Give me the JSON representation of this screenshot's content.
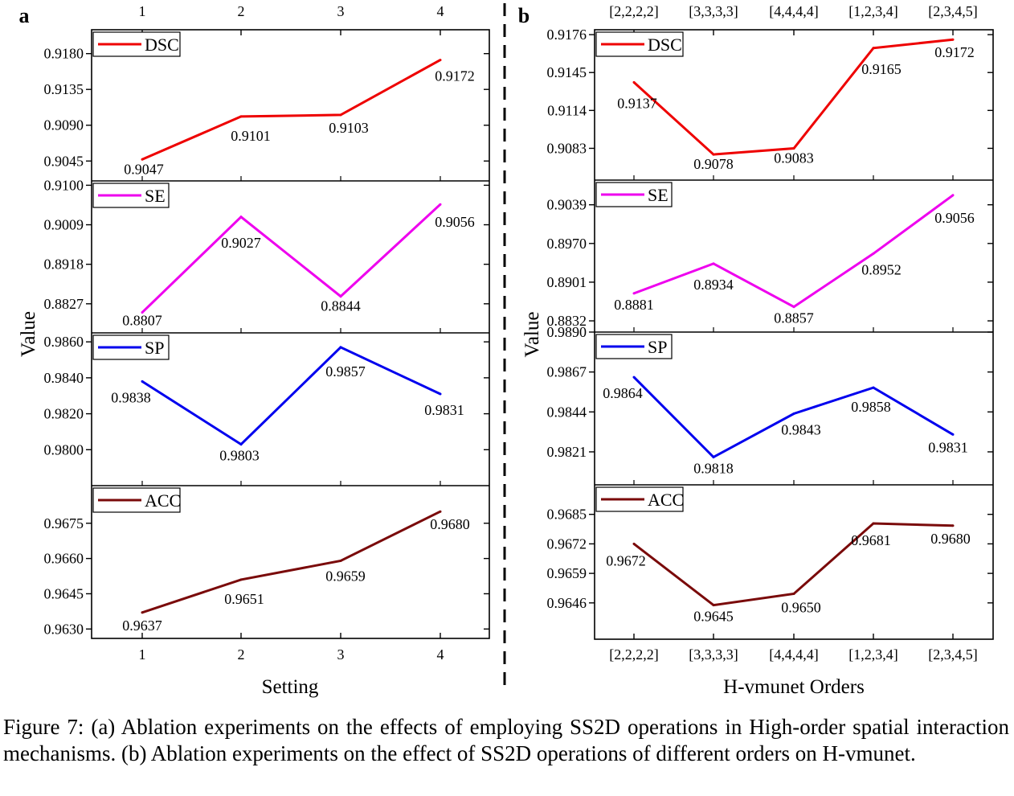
{
  "caption": "Figure 7: (a) Ablation experiments on the effects of employing SS2D operations in High-order spatial interaction mechanisms. (b) Ablation experiments on the effect of SS2D operations of different orders on H-vmunet.",
  "chart_data": [
    {
      "panel_label": "a",
      "type": "line",
      "xlabel": "Setting",
      "ylabel": "Value",
      "categories": [
        "1",
        "2",
        "3",
        "4"
      ],
      "top_tick_labels": [
        "1",
        "2",
        "3",
        "4"
      ],
      "subplots": [
        {
          "name": "DSC",
          "color": "#ee0000",
          "values": [
            0.9047,
            0.9101,
            0.9103,
            0.9172
          ],
          "ylim": [
            0.902,
            0.921
          ],
          "yticks": [
            "0.9045",
            "0.9090",
            "0.9135",
            "0.9180"
          ],
          "labels": [
            "0.9047",
            "0.9101",
            "0.9103",
            "0.9172"
          ],
          "legend": "top-left"
        },
        {
          "name": "SE",
          "color": "#ee00ee",
          "values": [
            0.8807,
            0.9027,
            0.8844,
            0.9056
          ],
          "ylim": [
            0.876,
            0.911
          ],
          "yticks": [
            "0.8827",
            "0.8918",
            "0.9009",
            "0.9100"
          ],
          "labels": [
            "0.8807",
            "0.9027",
            "0.8844",
            "0.9056"
          ],
          "legend": "top-left"
        },
        {
          "name": "SP",
          "color": "#0000ee",
          "values": [
            0.9838,
            0.9803,
            0.9857,
            0.9831
          ],
          "ylim": [
            0.978,
            0.9865
          ],
          "yticks": [
            "0.9800",
            "0.9820",
            "0.9840",
            "0.9860"
          ],
          "labels": [
            "0.9838",
            "0.9803",
            "0.9857",
            "0.9831"
          ],
          "legend": "top-left"
        },
        {
          "name": "ACC",
          "color": "#7a0a0a",
          "values": [
            0.9637,
            0.9651,
            0.9659,
            0.968
          ],
          "ylim": [
            0.9626,
            0.9691
          ],
          "yticks": [
            "0.9630",
            "0.9645",
            "0.9660",
            "0.9675"
          ],
          "labels": [
            "0.9637",
            "0.9651",
            "0.9659",
            "0.9680"
          ],
          "legend": "top-left"
        }
      ]
    },
    {
      "panel_label": "b",
      "type": "line",
      "xlabel": "H-vmunet Orders",
      "ylabel": "Value",
      "categories": [
        "[2,2,2,2]",
        "[3,3,3,3]",
        "[4,4,4,4]",
        "[1,2,3,4]",
        "[2,3,4,5]"
      ],
      "top_tick_labels": [
        "[2,2,2,2]",
        "[3,3,3,3]",
        "[4,4,4,4]",
        "[1,2,3,4]",
        "[2,3,4,5]"
      ],
      "subplots": [
        {
          "name": "DSC",
          "color": "#ee0000",
          "values": [
            0.9137,
            0.9078,
            0.9083,
            0.9165,
            0.9172
          ],
          "ylim": [
            0.9057,
            0.918
          ],
          "yticks": [
            "0.9083",
            "0.9114",
            "0.9145",
            "0.9176"
          ],
          "labels": [
            "0.9137",
            "0.9078",
            "0.9083",
            "0.9165",
            "0.9172"
          ],
          "legend": "top-left"
        },
        {
          "name": "SE",
          "color": "#ee00ee",
          "values": [
            0.8881,
            0.8934,
            0.8857,
            0.8952,
            0.9056
          ],
          "ylim": [
            0.8812,
            0.9083
          ],
          "yticks": [
            "0.8832",
            "0.8901",
            "0.8970",
            "0.9039"
          ],
          "labels": [
            "0.8881",
            "0.8934",
            "0.8857",
            "0.8952",
            "0.9056"
          ],
          "legend": "top-left"
        },
        {
          "name": "SP",
          "color": "#0000ee",
          "values": [
            0.9864,
            0.9818,
            0.9843,
            0.9858,
            0.9831
          ],
          "ylim": [
            0.9802,
            0.989
          ],
          "yticks": [
            "0.9821",
            "0.9844",
            "0.9867",
            "0.9890"
          ],
          "labels": [
            "0.9864",
            "0.9818",
            "0.9843",
            "0.9858",
            "0.9831"
          ],
          "legend": "top-left"
        },
        {
          "name": "ACC",
          "color": "#7a0a0a",
          "values": [
            0.9672,
            0.9645,
            0.965,
            0.9681,
            0.968
          ],
          "ylim": [
            0.963,
            0.9698
          ],
          "yticks": [
            "0.9646",
            "0.9659",
            "0.9672",
            "0.9685"
          ],
          "labels": [
            "0.9672",
            "0.9645",
            "0.9650",
            "0.9681",
            "0.9680"
          ],
          "legend": "top-left"
        }
      ]
    }
  ]
}
